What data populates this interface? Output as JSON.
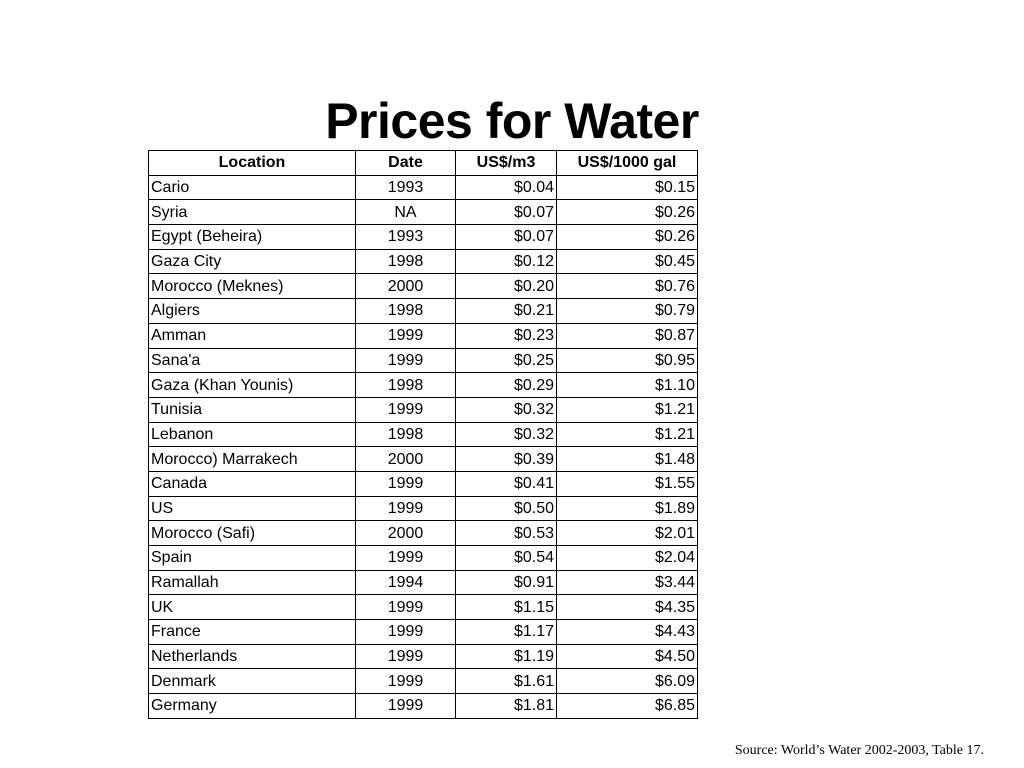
{
  "slide": {
    "title": "Prices for Water"
  },
  "table": {
    "headers": [
      "Location",
      "Date",
      "US$/m3",
      "US$/1000 gal"
    ],
    "rows": [
      [
        "Cario",
        "1993",
        "$0.04",
        "$0.15"
      ],
      [
        "Syria",
        "NA",
        "$0.07",
        "$0.26"
      ],
      [
        "Egypt (Beheira)",
        "1993",
        "$0.07",
        "$0.26"
      ],
      [
        "Gaza City",
        "1998",
        "$0.12",
        "$0.45"
      ],
      [
        "Morocco (Meknes)",
        "2000",
        "$0.20",
        "$0.76"
      ],
      [
        "Algiers",
        "1998",
        "$0.21",
        "$0.79"
      ],
      [
        "Amman",
        "1999",
        "$0.23",
        "$0.87"
      ],
      [
        "Sana'a",
        "1999",
        "$0.25",
        "$0.95"
      ],
      [
        "Gaza (Khan Younis)",
        "1998",
        "$0.29",
        "$1.10"
      ],
      [
        "Tunisia",
        "1999",
        "$0.32",
        "$1.21"
      ],
      [
        "Lebanon",
        "1998",
        "$0.32",
        "$1.21"
      ],
      [
        "Morocco) Marrakech",
        "2000",
        "$0.39",
        "$1.48"
      ],
      [
        "Canada",
        "1999",
        "$0.41",
        "$1.55"
      ],
      [
        "US",
        "1999",
        "$0.50",
        "$1.89"
      ],
      [
        "Morocco (Safi)",
        "2000",
        "$0.53",
        "$2.01"
      ],
      [
        "Spain",
        "1999",
        "$0.54",
        "$2.04"
      ],
      [
        "Ramallah",
        "1994",
        "$0.91",
        "$3.44"
      ],
      [
        "UK",
        "1999",
        "$1.15",
        "$4.35"
      ],
      [
        "France",
        "1999",
        "$1.17",
        "$4.43"
      ],
      [
        "Netherlands",
        "1999",
        "$1.19",
        "$4.50"
      ],
      [
        "Denmark",
        "1999",
        "$1.61",
        "$6.09"
      ],
      [
        "Germany",
        "1999",
        "$1.81",
        "$6.85"
      ]
    ]
  },
  "footer": {
    "source": "Source: World’s Water 2002-2003, Table 17."
  }
}
